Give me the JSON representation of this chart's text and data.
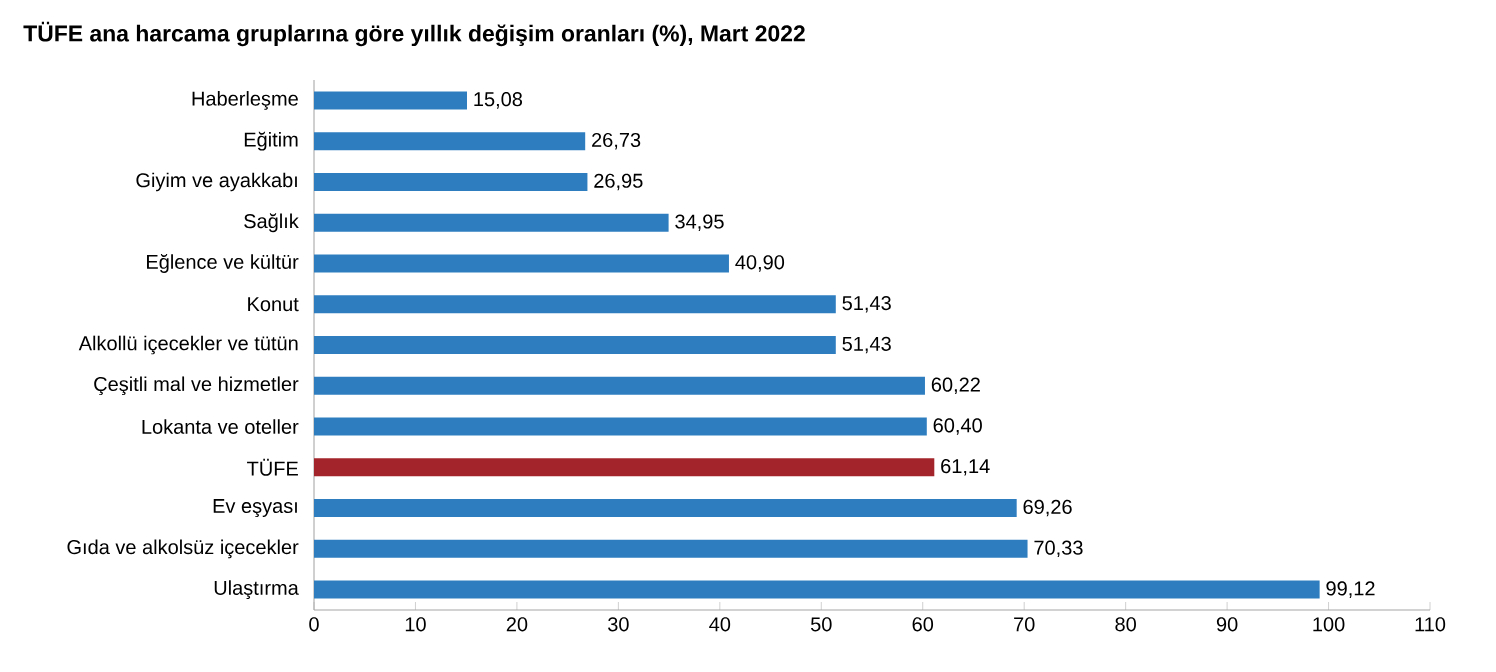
{
  "chart_data": {
    "type": "bar",
    "orientation": "horizontal",
    "title": "TÜFE ana harcama gruplarına göre yıllık değişim oranları (%), Mart 2022",
    "categories": [
      "Haberleşme",
      "Eğitim",
      "Giyim ve ayakkabı",
      "Sağlık",
      "Eğlence ve kültür",
      "Konut",
      "Alkollü içecekler ve tütün",
      "Çeşitli mal ve hizmetler",
      "Lokanta ve oteller",
      "TÜFE",
      "Ev eşyası",
      "Gıda ve alkolsüz içecekler",
      "Ulaştırma"
    ],
    "values": [
      15.08,
      26.73,
      26.95,
      34.95,
      40.9,
      51.43,
      51.43,
      60.22,
      60.4,
      61.14,
      69.26,
      70.33,
      99.12
    ],
    "value_labels": [
      "15,08",
      "26,73",
      "26,95",
      "34,95",
      "40,90",
      "51,43",
      "51,43",
      "60,22",
      "60,40",
      "61,14",
      "69,26",
      "70,33",
      "99,12"
    ],
    "colors": [
      "#2e7ebf",
      "#2e7ebf",
      "#2e7ebf",
      "#2e7ebf",
      "#2e7ebf",
      "#2e7ebf",
      "#2e7ebf",
      "#2e7ebf",
      "#2e7ebf",
      "#a3242a",
      "#2e7ebf",
      "#2e7ebf",
      "#2e7ebf"
    ],
    "xlim": [
      0,
      110
    ],
    "xticks": [
      0,
      10,
      20,
      30,
      40,
      50,
      60,
      70,
      80,
      90,
      100,
      110
    ]
  }
}
